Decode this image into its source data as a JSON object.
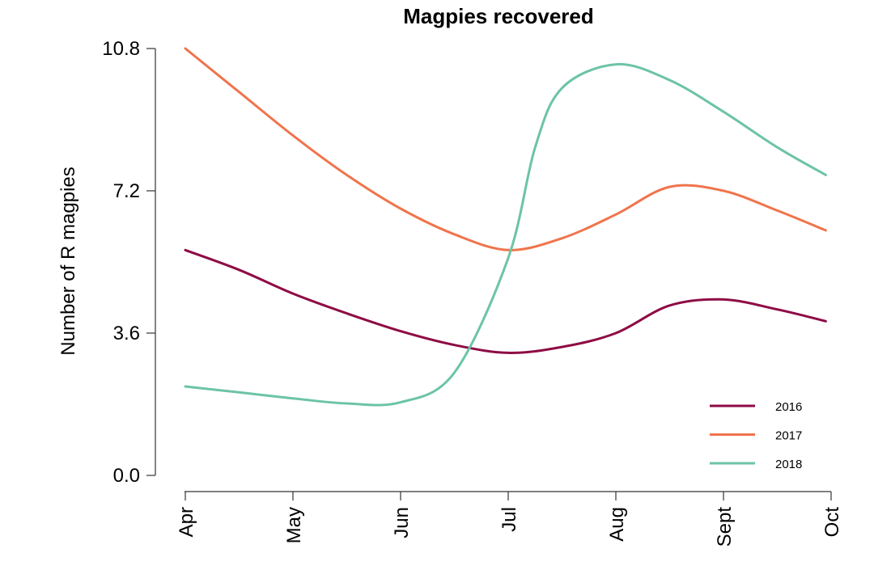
{
  "chart_data": {
    "type": "line",
    "title": "Magpies recovered",
    "xlabel": "",
    "ylabel": "Number of R magpies",
    "x_ticks": [
      "Apr",
      "May",
      "Jun",
      "Jul",
      "Aug",
      "Sept",
      "Oct"
    ],
    "y_ticks": [
      "0.0",
      "3.6",
      "7.2",
      "10.8"
    ],
    "ylim": [
      0,
      10.8
    ],
    "legend_position": "bottom-right",
    "grid": false,
    "series": [
      {
        "name": "2016",
        "color": "#8e0b45",
        "points": [
          [
            0.0,
            5.7
          ],
          [
            0.5,
            5.2
          ],
          [
            1.0,
            4.6
          ],
          [
            1.5,
            4.1
          ],
          [
            2.0,
            3.65
          ],
          [
            2.5,
            3.3
          ],
          [
            3.0,
            3.1
          ],
          [
            3.5,
            3.25
          ],
          [
            4.0,
            3.6
          ],
          [
            4.5,
            4.3
          ],
          [
            5.0,
            4.45
          ],
          [
            5.5,
            4.2
          ],
          [
            5.95,
            3.9
          ]
        ]
      },
      {
        "name": "2017",
        "color": "#f0744c",
        "points": [
          [
            0.0,
            10.8
          ],
          [
            0.5,
            9.7
          ],
          [
            1.0,
            8.6
          ],
          [
            1.5,
            7.6
          ],
          [
            2.0,
            6.75
          ],
          [
            2.5,
            6.1
          ],
          [
            3.0,
            5.7
          ],
          [
            3.5,
            6.0
          ],
          [
            4.0,
            6.6
          ],
          [
            4.5,
            7.3
          ],
          [
            5.0,
            7.2
          ],
          [
            5.5,
            6.7
          ],
          [
            5.95,
            6.2
          ]
        ]
      },
      {
        "name": "2018",
        "color": "#6cc4a4",
        "points": [
          [
            0.0,
            2.25
          ],
          [
            0.5,
            2.1
          ],
          [
            1.0,
            1.95
          ],
          [
            1.5,
            1.82
          ],
          [
            2.0,
            1.85
          ],
          [
            2.5,
            2.6
          ],
          [
            3.0,
            5.5
          ],
          [
            3.25,
            8.3
          ],
          [
            3.5,
            9.8
          ],
          [
            4.0,
            10.4
          ],
          [
            4.5,
            10.0
          ],
          [
            5.0,
            9.2
          ],
          [
            5.5,
            8.3
          ],
          [
            5.95,
            7.6
          ]
        ]
      }
    ]
  }
}
